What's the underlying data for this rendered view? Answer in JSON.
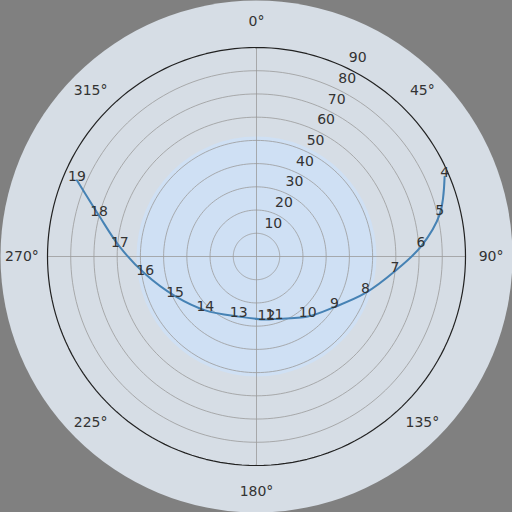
{
  "chart_data": {
    "type": "polar",
    "categories": [
      4,
      5,
      6,
      7,
      8,
      9,
      10,
      11,
      12,
      13,
      14,
      15,
      16,
      17,
      18,
      19
    ],
    "azimuth": [
      67,
      77,
      86.5,
      96,
      108.5,
      123,
      139.5,
      164,
      171,
      196.5,
      223.5,
      244,
      261,
      274,
      284.5,
      293
    ],
    "zenith": [
      88,
      81,
      71,
      60,
      49.5,
      40,
      34,
      28,
      27.5,
      27,
      32,
      39,
      48.5,
      59,
      70,
      84
    ],
    "color": "#4682b4",
    "rlim": [
      0,
      90
    ],
    "rticks": [
      10,
      20,
      30,
      40,
      50,
      60,
      70,
      80,
      90
    ],
    "azimuth_ticks": [
      {
        "value": 0,
        "label": "0°"
      },
      {
        "value": 45,
        "label": "45°"
      },
      {
        "value": 90,
        "label": "90°"
      },
      {
        "value": 135,
        "label": "135°"
      },
      {
        "value": 180,
        "label": "180°"
      },
      {
        "value": 225,
        "label": "225°"
      },
      {
        "value": 270,
        "label": "270°"
      },
      {
        "value": 315,
        "label": "315°"
      }
    ],
    "grid": true
  }
}
